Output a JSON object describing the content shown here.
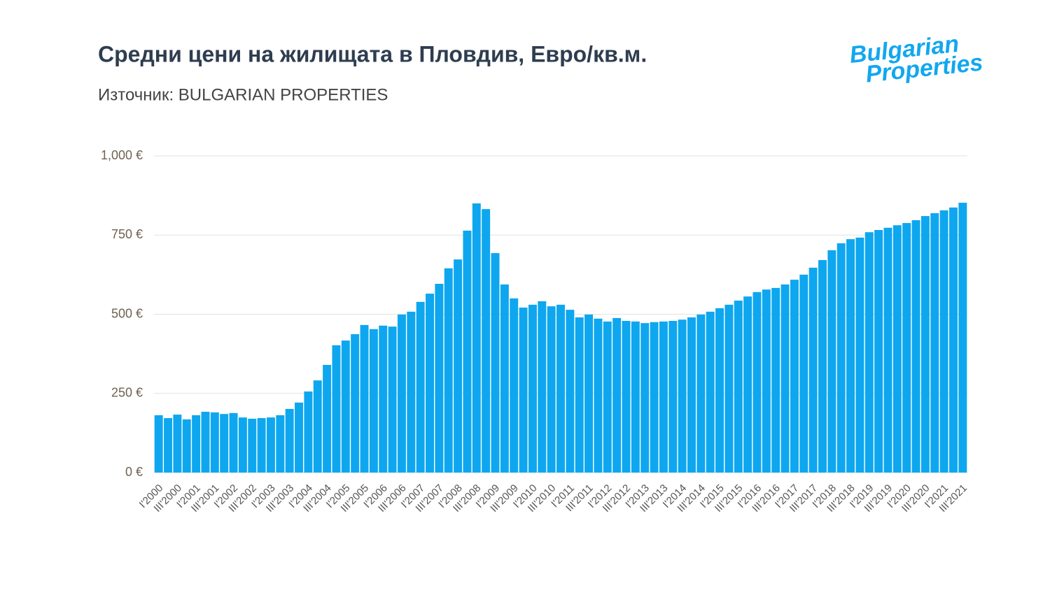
{
  "chart_data": {
    "type": "bar",
    "title": "Средни цени на жилищата в Пловдив, Евро/кв.м.",
    "subtitle": "Източник: BULGARIAN PROPERTIES",
    "logo": [
      "Bulgarian",
      "Properties"
    ],
    "color": "#0ea7ef",
    "grid": true,
    "ylim": [
      0,
      1000
    ],
    "yticks": [
      {
        "value": 0,
        "label": "0 €"
      },
      {
        "value": 250,
        "label": "250 €"
      },
      {
        "value": 500,
        "label": "500 €"
      },
      {
        "value": 750,
        "label": "750 €"
      },
      {
        "value": 1000,
        "label": "1,000 €"
      }
    ],
    "categories": [
      "I'2000",
      null,
      "III'2000",
      null,
      "I'2001",
      null,
      "III'2001",
      null,
      "I'2002",
      null,
      "III'2002",
      null,
      "I'2003",
      null,
      "III'2003",
      null,
      "I'2004",
      null,
      "III'2004",
      null,
      "I'2005",
      null,
      "III'2005",
      null,
      "I'2006",
      null,
      "III'2006",
      null,
      "I'2007",
      null,
      "III'2007",
      null,
      "I'2008",
      null,
      "III'2008",
      null,
      "I'2009",
      null,
      "III'2009",
      null,
      "I'2010",
      null,
      "III'2010",
      null,
      "I'2011",
      null,
      "III'2011",
      null,
      "I'2012",
      null,
      "III'2012",
      null,
      "I'2013",
      null,
      "III'2013",
      null,
      "I'2014",
      null,
      "III'2014",
      null,
      "I'2015",
      null,
      "III'2015",
      null,
      "I'2016",
      null,
      "III'2016",
      null,
      "I'2017",
      null,
      "III'2017",
      null,
      "I'2018",
      null,
      "III'2018",
      null,
      "I'2019",
      null,
      "III'2019",
      null,
      "I'2020",
      null,
      "III'2020",
      null,
      "I'2021",
      null,
      "III'2021"
    ],
    "values": [
      181,
      172,
      183,
      168,
      181,
      192,
      190,
      185,
      188,
      174,
      170,
      172,
      174,
      181,
      201,
      221,
      256,
      291,
      340,
      402,
      417,
      437,
      466,
      453,
      464,
      461,
      499,
      508,
      539,
      565,
      596,
      645,
      673,
      764,
      850,
      832,
      693,
      594,
      550,
      521,
      530,
      541,
      525,
      530,
      514,
      490,
      499,
      486,
      477,
      488,
      479,
      477,
      472,
      475,
      477,
      479,
      483,
      490,
      499,
      508,
      519,
      530,
      543,
      556,
      570,
      578,
      583,
      594,
      609,
      625,
      647,
      671,
      702,
      724,
      737,
      742,
      759,
      766,
      773,
      781,
      788,
      797,
      810,
      819,
      828,
      837,
      852
    ]
  }
}
